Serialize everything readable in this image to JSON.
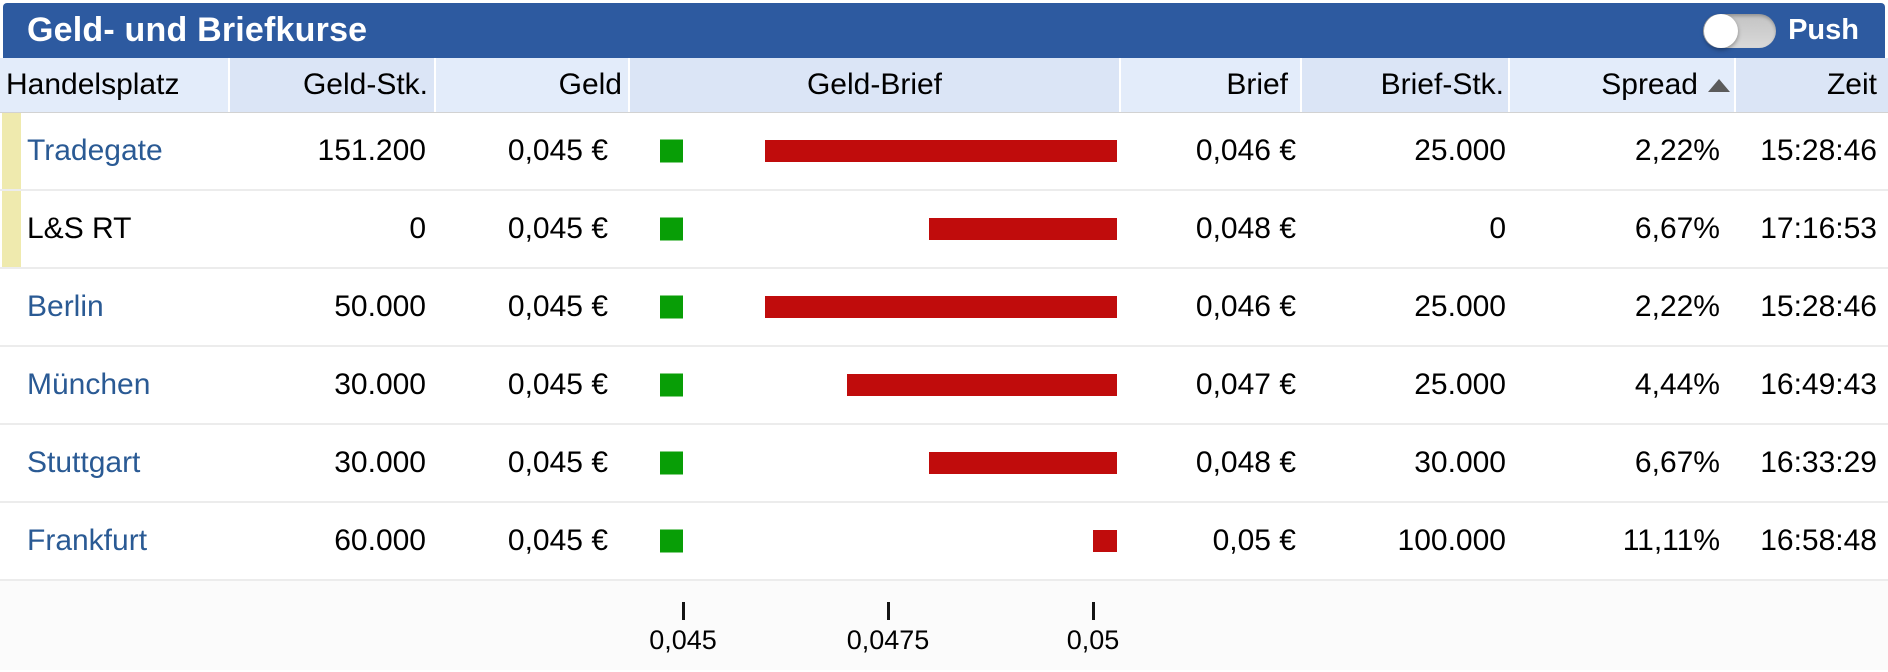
{
  "title_bar": {
    "title": "Geld- und Briefkurse",
    "push_label": "Push",
    "push_toggle_state": "off"
  },
  "colors": {
    "titlebar_blue": "#2d5aa0",
    "header_col_light": "#e3ecfa",
    "header_col_dark": "#dbe5f6",
    "geld_green": "#089e06",
    "brief_red": "#c00c0c",
    "highlight_yellow": "#efeaae",
    "link_blue": "#2a5a94"
  },
  "table": {
    "columns": [
      {
        "key": "handelsplatz",
        "label": "Handelsplatz"
      },
      {
        "key": "geld_stk",
        "label": "Geld-Stk."
      },
      {
        "key": "geld",
        "label": "Geld"
      },
      {
        "key": "geld_brief",
        "label": "Geld-Brief"
      },
      {
        "key": "brief",
        "label": "Brief"
      },
      {
        "key": "brief_stk",
        "label": "Brief-Stk."
      },
      {
        "key": "spread",
        "label": "Spread",
        "sort": "asc"
      },
      {
        "key": "zeit",
        "label": "Zeit"
      }
    ],
    "rows": [
      {
        "handelsplatz": "Tradegate",
        "link": true,
        "highlighted": true,
        "geld_stk": "151.200",
        "geld": "0,045 €",
        "brief": "0,046 €",
        "brief_stk": "25.000",
        "spread": "2,22%",
        "zeit": "15:28:46",
        "geld_value": 0.045,
        "brief_value": 0.046
      },
      {
        "handelsplatz": "L&S RT",
        "link": false,
        "highlighted": true,
        "geld_stk": "0",
        "geld": "0,045 €",
        "brief": "0,048 €",
        "brief_stk": "0",
        "spread": "6,67%",
        "zeit": "17:16:53",
        "geld_value": 0.045,
        "brief_value": 0.048
      },
      {
        "handelsplatz": "Berlin",
        "link": true,
        "highlighted": false,
        "geld_stk": "50.000",
        "geld": "0,045 €",
        "brief": "0,046 €",
        "brief_stk": "25.000",
        "spread": "2,22%",
        "zeit": "15:28:46",
        "geld_value": 0.045,
        "brief_value": 0.046
      },
      {
        "handelsplatz": "München",
        "link": true,
        "highlighted": false,
        "geld_stk": "30.000",
        "geld": "0,045 €",
        "brief": "0,047 €",
        "brief_stk": "25.000",
        "spread": "4,44%",
        "zeit": "16:49:43",
        "geld_value": 0.045,
        "brief_value": 0.047
      },
      {
        "handelsplatz": "Stuttgart",
        "link": true,
        "highlighted": false,
        "geld_stk": "30.000",
        "geld": "0,045 €",
        "brief": "0,048 €",
        "brief_stk": "30.000",
        "spread": "6,67%",
        "zeit": "16:33:29",
        "geld_value": 0.045,
        "brief_value": 0.048
      },
      {
        "handelsplatz": "Frankfurt",
        "link": true,
        "highlighted": false,
        "geld_stk": "60.000",
        "geld": "0,045 €",
        "brief": "0,05 €",
        "brief_stk": "100.000",
        "spread": "11,11%",
        "zeit": "16:58:48",
        "geld_value": 0.045,
        "brief_value": 0.05
      }
    ]
  },
  "chart_data": {
    "type": "bar",
    "title": "Geld-Brief",
    "categories": [
      "Tradegate",
      "L&S RT",
      "Berlin",
      "München",
      "Stuttgart",
      "Frankfurt"
    ],
    "series": [
      {
        "name": "Geld",
        "marker": "green-square",
        "values": [
          0.045,
          0.045,
          0.045,
          0.045,
          0.045,
          0.045
        ]
      },
      {
        "name": "Brief",
        "marker": "red-bar",
        "values": [
          0.046,
          0.048,
          0.046,
          0.047,
          0.048,
          0.05
        ]
      }
    ],
    "axis": {
      "min": 0.045,
      "max": 0.05,
      "ticks": [
        {
          "label": "0,045",
          "value": 0.045
        },
        {
          "label": "0,0475",
          "value": 0.0475
        },
        {
          "label": "0,05",
          "value": 0.05
        }
      ]
    },
    "legend": "none"
  }
}
